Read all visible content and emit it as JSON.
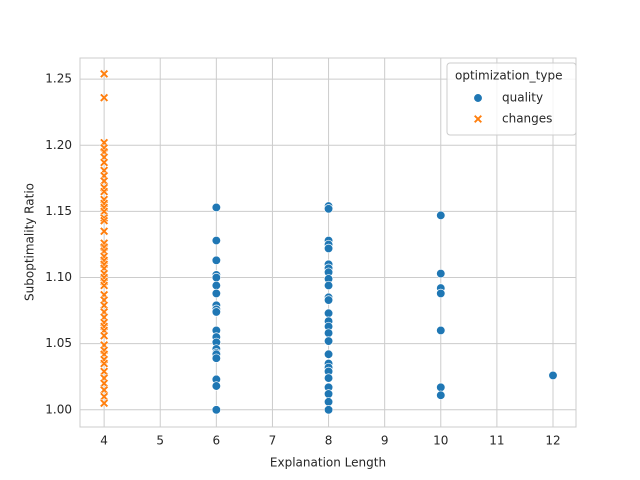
{
  "chart_data": {
    "type": "scatter",
    "xlabel": "Explanation Length",
    "ylabel": "Suboptimality Ratio",
    "xlim": [
      3.57,
      12.41
    ],
    "ylim": [
      0.987,
      1.266
    ],
    "xticks": [
      4,
      5,
      6,
      7,
      8,
      9,
      10,
      11,
      12
    ],
    "yticks": [
      {
        "value": 1.0,
        "label": "1.00"
      },
      {
        "value": 1.05,
        "label": "1.05"
      },
      {
        "value": 1.1,
        "label": "1.10"
      },
      {
        "value": 1.15,
        "label": "1.15"
      },
      {
        "value": 1.2,
        "label": "1.20"
      },
      {
        "value": 1.25,
        "label": "1.25"
      }
    ],
    "grid": true,
    "legend": "upper right",
    "legend_title": "optimization_type",
    "series": [
      {
        "name": "quality",
        "color": "#1f77b4",
        "marker": "circle",
        "x": [
          6,
          6,
          6,
          6,
          6,
          6,
          6,
          6,
          6,
          6,
          6,
          6,
          6,
          6,
          6,
          6,
          6,
          6,
          6,
          6,
          8,
          8,
          8,
          8,
          8,
          8,
          8,
          8,
          8,
          8,
          8,
          8,
          8,
          8,
          8,
          8,
          8,
          8,
          8,
          8,
          8,
          8,
          8,
          8,
          8,
          8,
          10,
          10,
          10,
          10,
          10,
          10,
          10,
          12
        ],
        "values": [
          1.153,
          1.128,
          1.113,
          1.102,
          1.1,
          1.094,
          1.088,
          1.079,
          1.076,
          1.074,
          1.06,
          1.055,
          1.051,
          1.046,
          1.043,
          1.042,
          1.039,
          1.023,
          1.018,
          1.0,
          1.154,
          1.152,
          1.128,
          1.125,
          1.122,
          1.11,
          1.107,
          1.104,
          1.099,
          1.094,
          1.085,
          1.083,
          1.073,
          1.067,
          1.063,
          1.058,
          1.052,
          1.042,
          1.035,
          1.032,
          1.029,
          1.024,
          1.017,
          1.012,
          1.006,
          1.0,
          1.147,
          1.103,
          1.092,
          1.088,
          1.06,
          1.017,
          1.011,
          1.026
        ]
      },
      {
        "name": "changes",
        "color": "#ff7f0e",
        "marker": "x",
        "x": [
          4,
          4,
          4,
          4,
          4,
          4,
          4,
          4,
          4,
          4,
          4,
          4,
          4,
          4,
          4,
          4,
          4,
          4,
          4,
          4,
          4,
          4,
          4,
          4,
          4,
          4,
          4,
          4,
          4,
          4,
          4,
          4,
          4,
          4,
          4,
          4,
          4,
          4,
          4,
          4,
          4,
          4,
          4,
          4,
          4,
          4,
          4,
          4,
          4,
          4
        ],
        "values": [
          1.254,
          1.236,
          1.202,
          1.198,
          1.195,
          1.191,
          1.187,
          1.181,
          1.177,
          1.173,
          1.168,
          1.165,
          1.159,
          1.156,
          1.153,
          1.15,
          1.145,
          1.143,
          1.135,
          1.126,
          1.123,
          1.12,
          1.116,
          1.113,
          1.11,
          1.107,
          1.103,
          1.1,
          1.097,
          1.094,
          1.087,
          1.083,
          1.079,
          1.074,
          1.07,
          1.066,
          1.063,
          1.06,
          1.056,
          1.049,
          1.045,
          1.042,
          1.038,
          1.035,
          1.029,
          1.024,
          1.02,
          1.015,
          1.01,
          1.005
        ]
      }
    ]
  }
}
